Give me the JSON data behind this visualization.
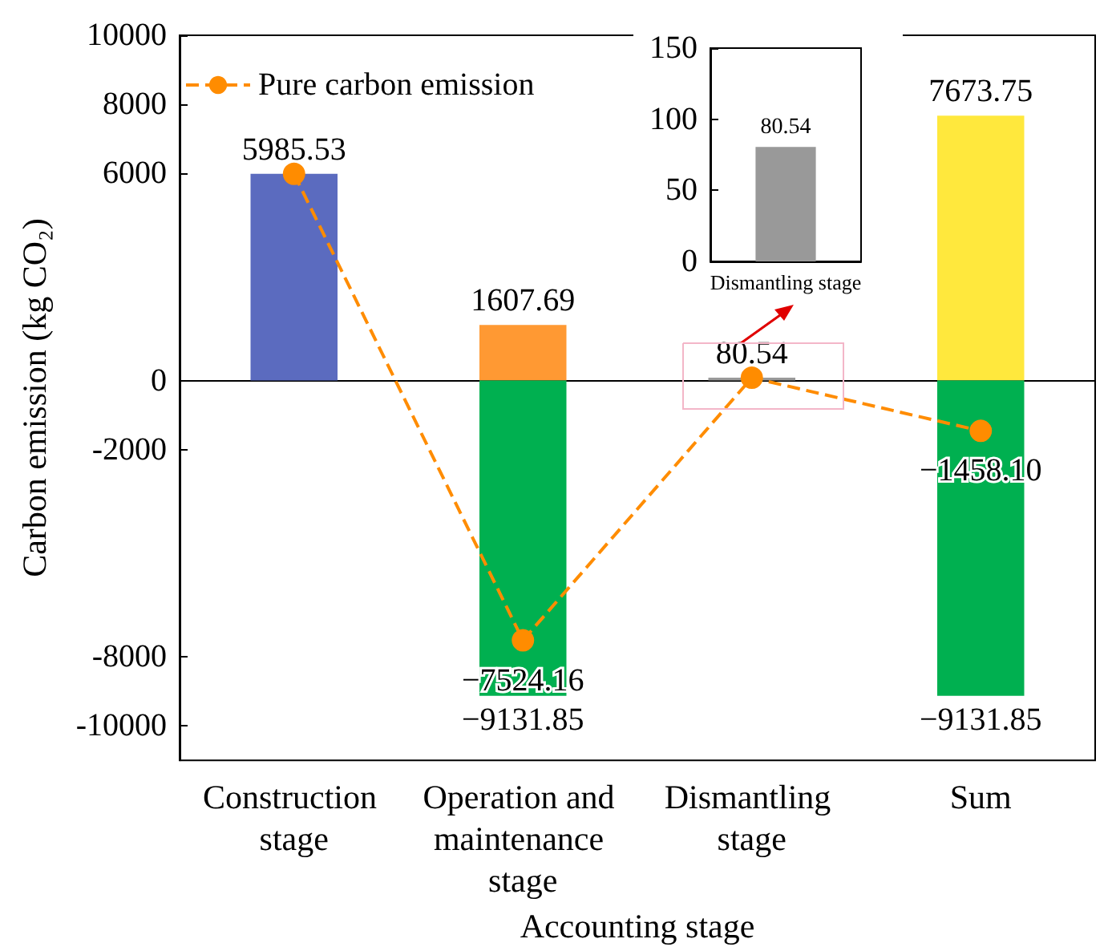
{
  "chart_data": [
    {
      "type": "bar",
      "xlabel": "Accounting stage",
      "ylabel": "Carbon emission (kg CO₂)",
      "categories": [
        "Construction stage",
        "Operation and maintenance stage",
        "Dismantling stage",
        "Sum"
      ],
      "stacked": true,
      "ylim": [
        -11000,
        10000
      ],
      "yticks": [
        -10000,
        -8000,
        -2000,
        0,
        6000,
        8000,
        10000
      ],
      "legend": "top left",
      "series": [
        {
          "values": [
            5985.53,
            1607.69,
            80.54,
            7673.75
          ],
          "colors": [
            "#5b6bbf",
            "#ff9933",
            "#999999",
            "#ffe83d"
          ],
          "value_labels": [
            "5985.53",
            "1607.69",
            "80.54",
            "7673.75"
          ]
        },
        {
          "values": [
            null,
            -9131.85,
            null,
            -9131.85
          ],
          "colors": [
            "#00b050",
            "#00b050",
            "#00b050",
            "#00b050"
          ],
          "value_labels": [
            null,
            "−9131.85",
            null,
            "−9131.85"
          ]
        },
        {
          "type": "line",
          "name": "Pure carbon emission",
          "color": "#ff8c00",
          "marker": "circle",
          "line_style": "dashed",
          "values": [
            5985.53,
            -7524.16,
            80.54,
            -1458.1
          ],
          "value_labels": [
            null,
            "−7524.16",
            null,
            "−1458.10"
          ]
        }
      ]
    },
    {
      "type": "bar",
      "categories": [
        "Dismantling stage"
      ],
      "values": [
        80.54
      ],
      "colors": [
        "#999999"
      ],
      "ylim": [
        0,
        150
      ],
      "yticks": [
        0,
        50,
        100,
        150
      ],
      "data_labels": true
    }
  ]
}
